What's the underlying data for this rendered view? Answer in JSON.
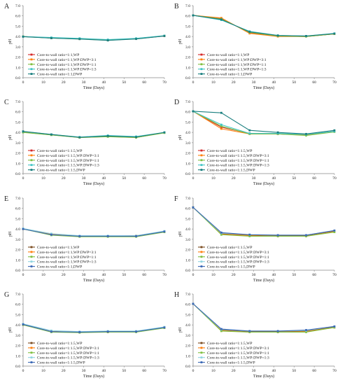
{
  "figure": {
    "background": "#ffffff",
    "axis_color": "#888888"
  },
  "chart_data": [
    {
      "letter": "A",
      "type": "line",
      "xlabel": "Time (Days)",
      "ylabel": "pH",
      "xlim": [
        0,
        70
      ],
      "ylim": [
        0,
        7
      ],
      "xticks": [
        0,
        10,
        20,
        30,
        40,
        50,
        60,
        70
      ],
      "yticks": [
        0,
        1,
        2,
        3,
        4,
        5,
        6,
        7
      ],
      "ytick_labels": [
        "0.0",
        "1.0",
        "2.0",
        "3.0",
        "4.0",
        "5.0",
        "6.0",
        "7.0"
      ],
      "x": [
        0,
        14,
        28,
        42,
        56,
        70
      ],
      "series": [
        {
          "name": "Core-to-wall ratio=1:1,WP",
          "color": "#d62728",
          "values": [
            4.0,
            3.85,
            3.78,
            3.65,
            3.78,
            4.05
          ]
        },
        {
          "name": "Core-to-wall ratio=1:1,WP:DWP=3:1",
          "color": "#ff7f0e",
          "values": [
            4.0,
            3.85,
            3.76,
            3.65,
            3.77,
            4.06
          ]
        },
        {
          "name": "Core-to-wall ratio=1:1,WP:DWP=1:1",
          "color": "#7fbf3f",
          "values": [
            4.0,
            3.86,
            3.77,
            3.63,
            3.8,
            4.07
          ]
        },
        {
          "name": "Core-to-wall ratio=1:1,WP:DWP=1:3",
          "color": "#40c4c4",
          "values": [
            4.0,
            3.9,
            3.82,
            3.7,
            3.82,
            4.08
          ]
        },
        {
          "name": "Core-to-wall ratio=1:1,DWP",
          "color": "#1a7f7f",
          "values": [
            3.98,
            3.84,
            3.75,
            3.62,
            3.76,
            4.05
          ]
        }
      ]
    },
    {
      "letter": "B",
      "type": "line",
      "xlabel": "Time (Days)",
      "ylabel": "pH",
      "xlim": [
        0,
        70
      ],
      "ylim": [
        0,
        7
      ],
      "xticks": [
        0,
        10,
        20,
        30,
        40,
        50,
        60,
        70
      ],
      "yticks": [
        0,
        1,
        2,
        3,
        4,
        5,
        6,
        7
      ],
      "ytick_labels": [
        "0.0",
        "1.0",
        "2.0",
        "3.0",
        "4.0",
        "5.0",
        "6.0",
        "7.0"
      ],
      "x": [
        0,
        14,
        28,
        42,
        56,
        70
      ],
      "series": [
        {
          "name": "Core-to-wall ratio=1:1,WP",
          "color": "#d62728",
          "values": [
            6.05,
            5.75,
            4.35,
            4.05,
            4.0,
            4.25
          ]
        },
        {
          "name": "Core-to-wall ratio=1:1,WP:DWP=3:1",
          "color": "#ff7f0e",
          "values": [
            6.05,
            5.8,
            4.3,
            4.0,
            4.0,
            4.25
          ]
        },
        {
          "name": "Core-to-wall ratio=1:1,WP:DWP=1:1",
          "color": "#7fbf3f",
          "values": [
            6.05,
            5.7,
            4.4,
            4.05,
            4.0,
            4.25
          ]
        },
        {
          "name": "Core-to-wall ratio=1:1,WP:DWP=1:3",
          "color": "#40c4c4",
          "values": [
            6.05,
            5.6,
            4.5,
            4.1,
            4.05,
            4.3
          ]
        },
        {
          "name": "Core-to-wall ratio=1:1,DWP",
          "color": "#1a7f7f",
          "values": [
            6.05,
            5.65,
            4.45,
            4.1,
            4.05,
            4.28
          ]
        }
      ]
    },
    {
      "letter": "C",
      "type": "line",
      "xlabel": "Time (Days)",
      "ylabel": "pH",
      "xlim": [
        0,
        70
      ],
      "ylim": [
        0,
        7
      ],
      "xticks": [
        0,
        10,
        20,
        30,
        40,
        50,
        60,
        70
      ],
      "yticks": [
        0,
        1,
        2,
        3,
        4,
        5,
        6,
        7
      ],
      "ytick_labels": [
        "0.0",
        "1.0",
        "2.0",
        "3.0",
        "4.0",
        "5.0",
        "6.0",
        "7.0"
      ],
      "x": [
        0,
        14,
        28,
        42,
        56,
        70
      ],
      "series": [
        {
          "name": "Core-to-wall ratio=1:1.5,WP",
          "color": "#d62728",
          "values": [
            4.02,
            3.76,
            3.52,
            3.62,
            3.55,
            3.98
          ]
        },
        {
          "name": "Core-to-wall ratio=1:1.5,WP:DWP=3:1",
          "color": "#ff7f0e",
          "values": [
            4.05,
            3.78,
            3.5,
            3.6,
            3.5,
            3.98
          ]
        },
        {
          "name": "Core-to-wall ratio=1:1.5,WP:DWP=1:1",
          "color": "#7fbf3f",
          "values": [
            4.0,
            3.75,
            3.5,
            3.58,
            3.5,
            3.95
          ]
        },
        {
          "name": "Core-to-wall ratio=1:1.5,WP:DWP=1:3",
          "color": "#40c4c4",
          "values": [
            4.08,
            3.8,
            3.55,
            3.7,
            3.6,
            4.0
          ]
        },
        {
          "name": "Core-to-wall ratio=1:1.5,DWP",
          "color": "#1a7f7f",
          "values": [
            4.1,
            3.8,
            3.52,
            3.65,
            3.55,
            4.0
          ]
        }
      ]
    },
    {
      "letter": "D",
      "type": "line",
      "xlabel": "Time (Days)",
      "ylabel": "pH",
      "xlim": [
        0,
        70
      ],
      "ylim": [
        0,
        7
      ],
      "xticks": [
        0,
        10,
        20,
        30,
        40,
        50,
        60,
        70
      ],
      "yticks": [
        0,
        1,
        2,
        3,
        4,
        5,
        6,
        7
      ],
      "ytick_labels": [
        "0.0",
        "1.0",
        "2.0",
        "3.0",
        "4.0",
        "5.0",
        "6.0",
        "7.0"
      ],
      "x": [
        0,
        14,
        28,
        42,
        56,
        70
      ],
      "series": [
        {
          "name": "Core-to-wall ratio=1:1.5,WP",
          "color": "#d62728",
          "values": [
            6.05,
            4.5,
            3.9,
            3.85,
            3.75,
            4.1
          ]
        },
        {
          "name": "Core-to-wall ratio=1:1.5,WP:DWP=3:1",
          "color": "#ff7f0e",
          "values": [
            6.05,
            4.35,
            3.85,
            3.85,
            3.75,
            4.1
          ]
        },
        {
          "name": "Core-to-wall ratio=1:1.5,WP:DWP=1:1",
          "color": "#7fbf3f",
          "values": [
            6.05,
            4.6,
            3.85,
            3.85,
            3.7,
            4.05
          ]
        },
        {
          "name": "Core-to-wall ratio=1:1.5,WP:DWP=1:3",
          "color": "#40c4c4",
          "values": [
            6.05,
            4.75,
            3.9,
            3.9,
            3.8,
            4.1
          ]
        },
        {
          "name": "Core-to-wall ratio=1:1.5,DWP",
          "color": "#1a7f7f",
          "values": [
            6.05,
            5.9,
            4.2,
            4.0,
            3.85,
            4.2
          ]
        }
      ]
    },
    {
      "letter": "E",
      "type": "line",
      "xlabel": "Time (Days)",
      "ylabel": "pH",
      "xlim": [
        0,
        70
      ],
      "ylim": [
        0,
        7
      ],
      "xticks": [
        0,
        10,
        20,
        30,
        40,
        50,
        60,
        70
      ],
      "yticks": [
        0,
        1,
        2,
        3,
        4,
        5,
        6,
        7
      ],
      "ytick_labels": [
        "0.0",
        "1.0",
        "2.0",
        "3.0",
        "4.0",
        "5.0",
        "6.0",
        "7.0"
      ],
      "x": [
        0,
        14,
        28,
        42,
        56,
        70
      ],
      "series": [
        {
          "name": "Core-to-wall ratio=1:1,WP",
          "color": "#7a4a1e",
          "values": [
            4.0,
            3.45,
            3.3,
            3.3,
            3.3,
            3.75
          ]
        },
        {
          "name": "Core-to-wall ratio=1:1,WP:DWP=3:1",
          "color": "#ff7f0e",
          "values": [
            4.0,
            3.5,
            3.3,
            3.3,
            3.35,
            3.75
          ]
        },
        {
          "name": "Core-to-wall ratio=1:1,WP:DWP=1:1",
          "color": "#7fbf3f",
          "values": [
            4.0,
            3.4,
            3.25,
            3.25,
            3.25,
            3.7
          ]
        },
        {
          "name": "Core-to-wall ratio=1:1,WP:DWP=1:3",
          "color": "#8fd4e0",
          "values": [
            4.05,
            3.55,
            3.35,
            3.35,
            3.35,
            3.8
          ]
        },
        {
          "name": "Core-to-wall ratio=1:1,DWP",
          "color": "#3a68b5",
          "values": [
            4.0,
            3.45,
            3.3,
            3.3,
            3.3,
            3.75
          ]
        }
      ]
    },
    {
      "letter": "F",
      "type": "line",
      "xlabel": "Time (Days)",
      "ylabel": "pH",
      "xlim": [
        0,
        70
      ],
      "ylim": [
        0,
        7
      ],
      "xticks": [
        0,
        10,
        20,
        30,
        40,
        50,
        60,
        70
      ],
      "yticks": [
        0,
        1,
        2,
        3,
        4,
        5,
        6,
        7
      ],
      "ytick_labels": [
        "0.0",
        "1.0",
        "2.0",
        "3.0",
        "4.0",
        "5.0",
        "6.0",
        "7.0"
      ],
      "x": [
        0,
        14,
        28,
        42,
        56,
        70
      ],
      "series": [
        {
          "name": "Core-to-wall ratio=1:1.5,WP",
          "color": "#7a4a1e",
          "values": [
            6.1,
            3.55,
            3.4,
            3.35,
            3.35,
            3.8
          ]
        },
        {
          "name": "Core-to-wall ratio=1:1.5,WP:DWP=3:1",
          "color": "#ff7f0e",
          "values": [
            6.1,
            3.5,
            3.35,
            3.3,
            3.3,
            3.75
          ]
        },
        {
          "name": "Core-to-wall ratio=1:1.5,WP:DWP=1:1",
          "color": "#7fbf3f",
          "values": [
            6.1,
            3.45,
            3.3,
            3.3,
            3.3,
            3.7
          ]
        },
        {
          "name": "Core-to-wall ratio=1:1.5,WP:DWP=1:3",
          "color": "#8fd4e0",
          "values": [
            6.1,
            3.6,
            3.45,
            3.4,
            3.4,
            3.85
          ]
        },
        {
          "name": "Core-to-wall ratio=1:1.5,DWP",
          "color": "#3a68b5",
          "values": [
            6.1,
            3.65,
            3.45,
            3.4,
            3.4,
            3.85
          ]
        }
      ]
    },
    {
      "letter": "G",
      "type": "line",
      "xlabel": "Time (Days)",
      "ylabel": "pH",
      "xlim": [
        0,
        70
      ],
      "ylim": [
        0,
        7
      ],
      "xticks": [
        0,
        10,
        20,
        30,
        40,
        50,
        60,
        70
      ],
      "yticks": [
        0,
        1,
        2,
        3,
        4,
        5,
        6,
        7
      ],
      "ytick_labels": [
        "0.0",
        "1.0",
        "2.0",
        "3.0",
        "4.0",
        "5.0",
        "6.0",
        "7.0"
      ],
      "x": [
        0,
        14,
        28,
        42,
        56,
        70
      ],
      "series": [
        {
          "name": "Core-to-wall ratio=1:1.5,WP",
          "color": "#7a4a1e",
          "values": [
            4.05,
            3.35,
            3.3,
            3.35,
            3.35,
            3.75
          ]
        },
        {
          "name": "Core-to-wall ratio=1:1.5,WP:DWP=3:1",
          "color": "#ff7f0e",
          "values": [
            4.0,
            3.35,
            3.3,
            3.3,
            3.35,
            3.75
          ]
        },
        {
          "name": "Core-to-wall ratio=1:1.5,WP:DWP=1:1",
          "color": "#7fbf3f",
          "values": [
            4.0,
            3.3,
            3.25,
            3.3,
            3.3,
            3.7
          ]
        },
        {
          "name": "Core-to-wall ratio=1:1.5,WP:DWP=1:3",
          "color": "#8fd4e0",
          "values": [
            4.1,
            3.45,
            3.35,
            3.4,
            3.4,
            3.8
          ]
        },
        {
          "name": "Core-to-wall ratio=1:1.5,DWP",
          "color": "#3a68b5",
          "values": [
            4.05,
            3.35,
            3.3,
            3.35,
            3.35,
            3.75
          ]
        }
      ]
    },
    {
      "letter": "H",
      "type": "line",
      "xlabel": "Time (Days)",
      "ylabel": "pH",
      "xlim": [
        0,
        70
      ],
      "ylim": [
        0,
        7
      ],
      "xticks": [
        0,
        10,
        20,
        30,
        40,
        50,
        60,
        70
      ],
      "yticks": [
        0,
        1,
        2,
        3,
        4,
        5,
        6,
        7
      ],
      "ytick_labels": [
        "0.0",
        "1.0",
        "2.0",
        "3.0",
        "4.0",
        "5.0",
        "6.0",
        "7.0"
      ],
      "x": [
        0,
        14,
        28,
        42,
        56,
        70
      ],
      "series": [
        {
          "name": "Core-to-wall ratio=1:1.5,WP",
          "color": "#7a4a1e",
          "values": [
            6.05,
            3.5,
            3.35,
            3.35,
            3.4,
            3.8
          ]
        },
        {
          "name": "Core-to-wall ratio=1:1.5,WP:DWP=3:1",
          "color": "#ff7f0e",
          "values": [
            6.05,
            3.45,
            3.3,
            3.3,
            3.35,
            3.75
          ]
        },
        {
          "name": "Core-to-wall ratio=1:1.5,WP:DWP=1:1",
          "color": "#7fbf3f",
          "values": [
            6.05,
            3.4,
            3.3,
            3.3,
            3.3,
            3.75
          ]
        },
        {
          "name": "Core-to-wall ratio=1:1.5,WP:DWP=1:3",
          "color": "#8fd4e0",
          "values": [
            6.05,
            3.55,
            3.4,
            3.4,
            3.45,
            3.85
          ]
        },
        {
          "name": "Core-to-wall ratio=1:1.5,DWP",
          "color": "#3a68b5",
          "values": [
            6.05,
            3.6,
            3.4,
            3.4,
            3.5,
            3.85
          ]
        }
      ]
    }
  ]
}
